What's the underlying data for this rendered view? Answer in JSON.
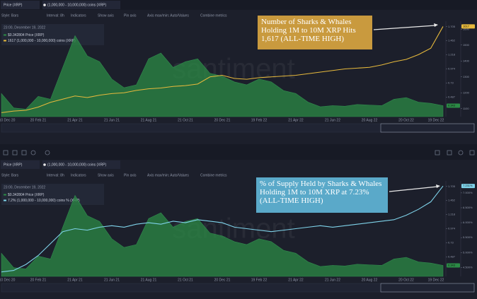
{
  "toolbar": [
    "Style: Bars",
    "Interval: 8h",
    "Indicators",
    "Show axis",
    "Pin axis",
    "Axis max/min: Auto/Values",
    "Combine metrics"
  ],
  "watermark": "santiment",
  "chart_data": [
    {
      "type": "area-line",
      "date": "23:00, December 19, 2022",
      "legend": [
        "$0.342804 Price (XRP)",
        "1617 (1,000,000 - 10,000,000) coins (XRP)"
      ],
      "annotation": "Number of Sharks & Whales Holding 1M to 10M XRP Hits 1,617 (ALL-TIME HIGH)",
      "annotation_color": "#c99a3e",
      "categories": [
        "10 Dec 20",
        null,
        null,
        "20 Feb 21",
        null,
        null,
        "21 Apr 21",
        null,
        null,
        "21 Jun 21",
        null,
        null,
        "21 Aug 21",
        null,
        null,
        "21 Oct 21",
        null,
        null,
        "20 Dec 21",
        null,
        null,
        "19 Feb 22",
        null,
        null,
        "21 Apr 22",
        null,
        null,
        "21 Jun 22",
        null,
        null,
        "20 Aug 22",
        null,
        null,
        "20 Oct 22",
        null,
        null,
        "19 Dec 22"
      ],
      "series": [
        {
          "name": "Price (XRP)",
          "color": "#2b8a45",
          "axis": "y2",
          "style": "area",
          "end_label": "0.343",
          "values": [
            0.55,
            0.3,
            0.28,
            0.5,
            0.45,
            1.0,
            1.55,
            1.2,
            1.1,
            0.8,
            0.65,
            0.7,
            1.15,
            1.25,
            1.0,
            1.1,
            1.15,
            0.9,
            0.85,
            0.75,
            0.7,
            0.8,
            0.75,
            0.6,
            0.55,
            0.4,
            0.32,
            0.34,
            0.33,
            0.36,
            0.35,
            0.34,
            0.45,
            0.48,
            0.4,
            0.38,
            0.34
          ]
        },
        {
          "name": "(1,000,000 - 10,000,000) coins (XRP)",
          "color": "#e6b93c",
          "axis": "y",
          "style": "line",
          "end_label": "1617",
          "values": [
            1075,
            1085,
            1090,
            1110,
            1140,
            1160,
            1180,
            1170,
            1185,
            1195,
            1200,
            1215,
            1225,
            1230,
            1240,
            1245,
            1255,
            1300,
            1310,
            1290,
            1285,
            1295,
            1300,
            1305,
            1310,
            1320,
            1330,
            1340,
            1350,
            1355,
            1360,
            1375,
            1395,
            1410,
            1440,
            1480,
            1617
          ]
        }
      ],
      "ylim": [
        1050,
        1650
      ],
      "yticks": [
        1100,
        1200,
        1300,
        1400,
        1500,
        1600
      ],
      "y2lim": [
        0.15,
        1.8
      ],
      "y2ticks": [
        0.487,
        0.73,
        0.974,
        1.218,
        1.462,
        1.705
      ]
    },
    {
      "type": "area-line",
      "date": "23:00, December 19, 2022",
      "legend": [
        "$0.342804 Price (XRP)",
        "7.2% (1,000,000 - 10,000,000) coins % (XRP)"
      ],
      "annotation": "% of Supply Held by Sharks & Whales Holding 1M to 10M XRP at 7.23% (ALL-TIME HIGH)",
      "annotation_color": "#5aa9c9",
      "categories": [
        "10 Dec 20",
        null,
        null,
        "20 Feb 21",
        null,
        null,
        "21 Apr 21",
        null,
        null,
        "21 Jun 21",
        null,
        null,
        "21 Aug 21",
        null,
        null,
        "21 Oct 21",
        null,
        null,
        "20 Dec 21",
        null,
        null,
        "19 Feb 22",
        null,
        null,
        "21 Apr 22",
        null,
        null,
        "21 Jun 22",
        null,
        null,
        "20 Aug 22",
        null,
        null,
        "20 Oct 22",
        null,
        null,
        "19 Dec 22"
      ],
      "series": [
        {
          "name": "Price (XRP)",
          "color": "#2b8a45",
          "axis": "y2",
          "style": "area",
          "end_label": "0.343",
          "values": [
            0.55,
            0.3,
            0.28,
            0.5,
            0.45,
            1.0,
            1.55,
            1.2,
            1.1,
            0.8,
            0.65,
            0.7,
            1.15,
            1.25,
            1.0,
            1.1,
            1.15,
            0.9,
            0.85,
            0.75,
            0.7,
            0.8,
            0.75,
            0.6,
            0.55,
            0.4,
            0.32,
            0.34,
            0.33,
            0.36,
            0.35,
            0.34,
            0.45,
            0.48,
            0.4,
            0.38,
            0.34
          ]
        },
        {
          "name": "(1,000,000 - 10,000,000) coins (XRP)",
          "color": "#7fd3ea",
          "axis": "y",
          "style": "line",
          "end_label": "7.231%",
          "values": [
            4.35,
            4.4,
            4.6,
            4.9,
            5.3,
            5.7,
            5.8,
            5.75,
            5.85,
            5.9,
            5.85,
            5.95,
            6.0,
            5.95,
            6.05,
            6.0,
            6.1,
            6.05,
            6.0,
            5.85,
            5.8,
            5.75,
            5.7,
            5.75,
            5.8,
            5.85,
            5.9,
            5.85,
            5.9,
            5.95,
            6.0,
            6.05,
            6.1,
            6.25,
            6.45,
            6.7,
            7.23
          ]
        }
      ],
      "ylim": [
        4.2,
        7.4
      ],
      "yticks": [
        {
          "value": 4.5,
          "label": "4.500%"
        },
        {
          "value": 5,
          "label": "5.000%"
        },
        {
          "value": 5.5,
          "label": "5.500%"
        },
        {
          "value": 6,
          "label": "6.000%"
        },
        {
          "value": 6.5,
          "label": "6.500%"
        },
        {
          "value": 7,
          "label": "7.000%"
        }
      ],
      "y2lim": [
        0.15,
        1.8
      ],
      "y2ticks": [
        0.487,
        0.73,
        0.974,
        1.218,
        1.462,
        1.705
      ]
    }
  ]
}
